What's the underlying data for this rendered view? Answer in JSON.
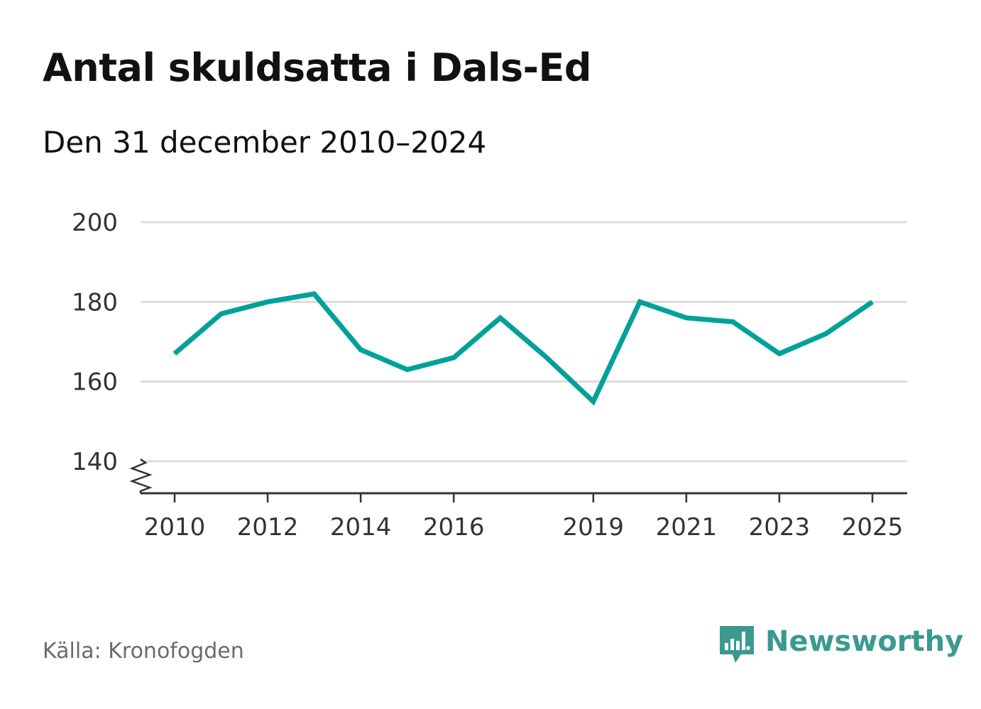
{
  "header": {
    "title": "Antal skuldsatta i Dals-Ed",
    "subtitle": "Den 31 december 2010–2024"
  },
  "footer": {
    "source": "Källa: Kronofogden",
    "brand": "Newsworthy"
  },
  "colors": {
    "line": "#00a19a",
    "grid": "#dcdcdc",
    "axis": "#333333",
    "brand": "#3a9a8f"
  },
  "chart_data": {
    "type": "line",
    "title": "Antal skuldsatta i Dals-Ed",
    "subtitle": "Den 31 december 2010–2024",
    "xlabel": "",
    "ylabel": "",
    "xlim": [
      2009.75,
      2025.75
    ],
    "ylim": [
      132,
      200
    ],
    "y_axis_break": true,
    "grid": true,
    "x_ticks": [
      2010,
      2012,
      2014,
      2016,
      2019,
      2021,
      2023,
      2025
    ],
    "y_ticks": [
      140,
      160,
      180,
      200
    ],
    "series": [
      {
        "name": "Antal skuldsatta",
        "x": [
          2010,
          2011,
          2012,
          2013,
          2014,
          2015,
          2016,
          2017,
          2018,
          2019,
          2020,
          2021,
          2022,
          2023,
          2024,
          2025
        ],
        "values": [
          167,
          177,
          180,
          182,
          168,
          163,
          166,
          176,
          166,
          155,
          180,
          176,
          175,
          167,
          172,
          180
        ]
      }
    ]
  }
}
